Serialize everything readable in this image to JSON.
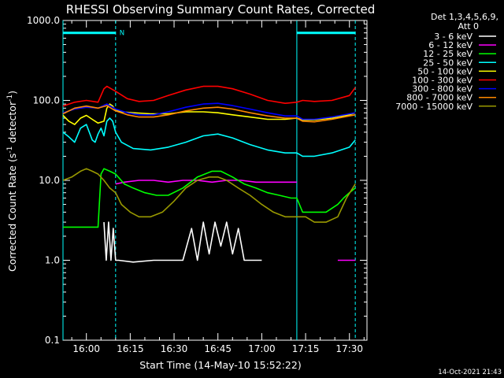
{
  "chart_data": {
    "type": "line",
    "title": "RHESSI Observing Summary Count Rates, Corrected",
    "xlabel": "Start Time (14-May-10 15:52:22)",
    "ylabel_main": "Corrected Count Rate (s",
    "ylabel_sup1": "-1",
    "ylabel_mid": " detector",
    "ylabel_sup2": "-1",
    "ylabel_end": ")",
    "yscale": "log",
    "ylim": [
      0.1,
      1000
    ],
    "xlim_minutes": [
      -6,
      98
    ],
    "x_unit": "minutes after 15:58",
    "x_ticks": [
      {
        "m": 2,
        "label": "16:00"
      },
      {
        "m": 17,
        "label": "16:15"
      },
      {
        "m": 32,
        "label": "16:30"
      },
      {
        "m": 47,
        "label": "16:45"
      },
      {
        "m": 62,
        "label": "17:00"
      },
      {
        "m": 77,
        "label": "17:15"
      },
      {
        "m": 92,
        "label": "17:30"
      }
    ],
    "y_ticks": [
      {
        "v": 1000,
        "label": "1000.0"
      },
      {
        "v": 100,
        "label": "100.0"
      },
      {
        "v": 10,
        "label": "10.0"
      },
      {
        "v": 1,
        "label": "1.0"
      },
      {
        "v": 0.1,
        "label": "0.1"
      }
    ],
    "legend_header": [
      "Det 1,3,4,5,6,9,",
      "Att 0"
    ],
    "series": [
      {
        "name": "3 - 6 keV",
        "color": "#ffffff",
        "x": [
          -6,
          7,
          8,
          8.8,
          9.6,
          10.4,
          11.2,
          12,
          13,
          18,
          25,
          31,
          35,
          38,
          40,
          42,
          44,
          46,
          48,
          50,
          52,
          54,
          56,
          58,
          62,
          70,
          80,
          94
        ],
        "y": [
          null,
          null,
          3,
          1,
          3,
          1,
          2.5,
          1,
          1,
          0.95,
          1,
          1,
          1,
          2.5,
          1,
          3,
          1.2,
          3,
          1.5,
          3,
          1.2,
          2.5,
          1,
          1,
          1,
          null,
          null,
          null
        ]
      },
      {
        "name": "6 - 12 keV",
        "color": "#ff00ff",
        "x": [
          12,
          15,
          20,
          25,
          30,
          35,
          40,
          45,
          50,
          55,
          60,
          65,
          70,
          74,
          76,
          88,
          94
        ],
        "y": [
          9,
          9.5,
          10,
          10,
          9.5,
          10,
          10,
          9.5,
          10,
          10,
          9.5,
          9.5,
          9.5,
          9.5,
          null,
          1,
          1
        ]
      },
      {
        "name": "12 - 25 keV",
        "color": "#00ff00",
        "x": [
          -6,
          0,
          6,
          7,
          8,
          10,
          12,
          15,
          18,
          22,
          26,
          30,
          35,
          40,
          45,
          48,
          52,
          56,
          60,
          64,
          68,
          72,
          74,
          76,
          80,
          84,
          88,
          90,
          92,
          94
        ],
        "y": [
          2.6,
          2.6,
          2.6,
          12,
          14,
          13,
          12,
          9,
          8,
          7,
          6.5,
          6.5,
          8,
          11,
          13,
          13,
          11,
          9,
          8,
          7,
          6.5,
          6,
          6,
          4,
          4,
          4,
          5,
          6,
          7,
          8
        ]
      },
      {
        "name": "25 - 50 keV",
        "color": "#00ffff",
        "x": [
          -6,
          -4,
          -2,
          0,
          2,
          3,
          4,
          5,
          6,
          7,
          8,
          9,
          10,
          11,
          12,
          14,
          18,
          24,
          30,
          36,
          42,
          47,
          52,
          58,
          64,
          70,
          74,
          76,
          80,
          86,
          92,
          94
        ],
        "y": [
          40,
          35,
          30,
          45,
          50,
          40,
          32,
          30,
          38,
          45,
          36,
          55,
          60,
          55,
          40,
          30,
          25,
          24,
          26,
          30,
          36,
          38,
          34,
          28,
          24,
          22,
          22,
          20,
          20,
          22,
          26,
          32
        ]
      },
      {
        "name": "50 - 100 keV",
        "color": "#ffff00",
        "x": [
          -6,
          -4,
          -2,
          0,
          2,
          4,
          6,
          8,
          9,
          10,
          11,
          12,
          14,
          18,
          24,
          30,
          36,
          42,
          47,
          52,
          58,
          64,
          70,
          74,
          76,
          80,
          86,
          92,
          94
        ],
        "y": [
          65,
          55,
          50,
          60,
          65,
          58,
          52,
          55,
          80,
          90,
          85,
          75,
          72,
          70,
          68,
          68,
          72,
          72,
          70,
          66,
          62,
          58,
          58,
          60,
          57,
          57,
          60,
          66,
          70
        ]
      },
      {
        "name": "100 - 300 keV",
        "color": "#ff0000",
        "x": [
          -6,
          -2,
          2,
          6,
          8,
          9,
          12,
          16,
          20,
          25,
          30,
          36,
          42,
          47,
          52,
          58,
          64,
          70,
          74,
          76,
          80,
          86,
          92,
          94
        ],
        "y": [
          85,
          95,
          100,
          95,
          140,
          150,
          130,
          105,
          97,
          100,
          115,
          135,
          150,
          150,
          140,
          120,
          100,
          92,
          95,
          100,
          97,
          100,
          115,
          145
        ]
      },
      {
        "name": "300 - 800 keV",
        "color": "#0000ff",
        "x": [
          -6,
          -2,
          2,
          6,
          9,
          12,
          16,
          20,
          25,
          30,
          36,
          42,
          47,
          52,
          58,
          64,
          70,
          74,
          76,
          80,
          86,
          92,
          94
        ],
        "y": [
          70,
          78,
          82,
          80,
          90,
          78,
          70,
          66,
          66,
          72,
          82,
          90,
          92,
          86,
          78,
          70,
          64,
          64,
          58,
          58,
          62,
          68,
          70
        ]
      },
      {
        "name": "800 - 7000 keV",
        "color": "#ff8800",
        "x": [
          -6,
          -2,
          2,
          6,
          9,
          12,
          16,
          20,
          25,
          30,
          36,
          42,
          47,
          52,
          58,
          64,
          70,
          74,
          76,
          80,
          86,
          92,
          94
        ],
        "y": [
          68,
          80,
          85,
          80,
          86,
          74,
          66,
          62,
          62,
          66,
          74,
          80,
          82,
          78,
          70,
          64,
          60,
          60,
          55,
          54,
          58,
          64,
          66
        ]
      },
      {
        "name": "7000 - 15000 keV",
        "color": "#999900",
        "x": [
          -6,
          -3,
          0,
          2,
          4,
          6,
          8,
          10,
          12,
          14,
          17,
          20,
          24,
          28,
          32,
          36,
          40,
          44,
          47,
          50,
          54,
          58,
          62,
          66,
          70,
          74,
          77,
          80,
          84,
          88,
          91,
          94
        ],
        "y": [
          10,
          11,
          13,
          14,
          13,
          12,
          10,
          8,
          7,
          5,
          4,
          3.5,
          3.5,
          4,
          5.5,
          8,
          10,
          11,
          11,
          10,
          8,
          6.5,
          5,
          4,
          3.5,
          3.5,
          3.5,
          3,
          3,
          3.5,
          6,
          9
        ]
      }
    ],
    "annotations": [
      {
        "type": "night_bar",
        "x_start": -6,
        "x_end": 12,
        "y": 700,
        "color": "#00ffff",
        "label": "N"
      },
      {
        "type": "night_bar",
        "x_start": 74,
        "x_end": 94,
        "y": 700,
        "color": "#00ffff"
      },
      {
        "type": "vline",
        "x": 12,
        "style": "dashed",
        "color": "#00ffff"
      },
      {
        "type": "vline",
        "x": 74,
        "style": "solid",
        "color": "#00ffff"
      },
      {
        "type": "vline",
        "x": 94,
        "style": "dashed",
        "color": "#00ffff"
      },
      {
        "type": "vline",
        "x": -6,
        "style": "solid",
        "color": "#00ffff"
      }
    ],
    "timestamp": "14-Oct-2021 21:43"
  }
}
